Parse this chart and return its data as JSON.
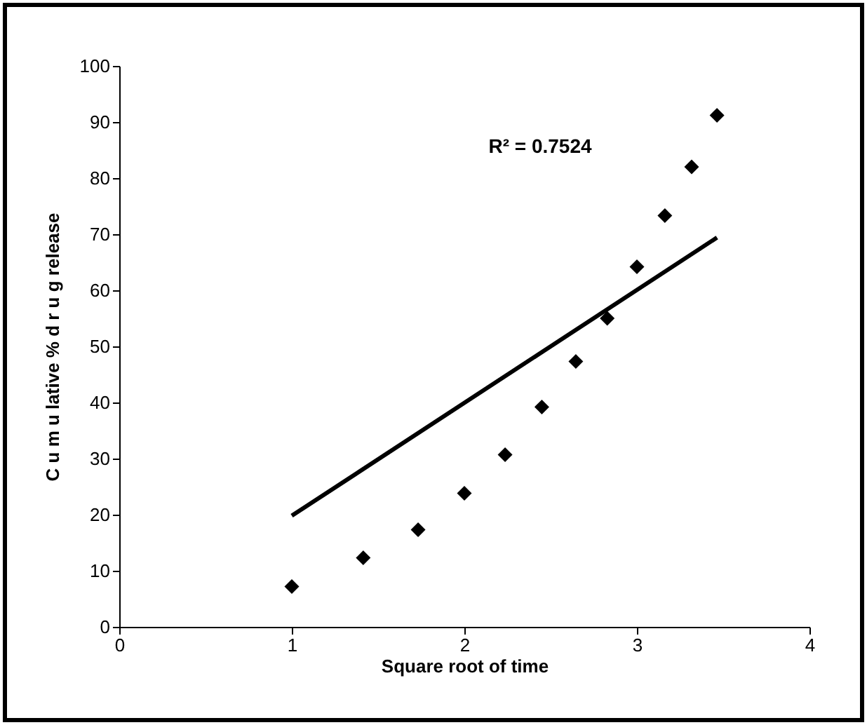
{
  "chart_data": {
    "type": "scatter",
    "xlabel": "Square root of time",
    "ylabel": "C u m u lative  %  d r u g  release",
    "x": [
      1,
      1.414,
      1.732,
      2,
      2.236,
      2.449,
      2.646,
      2.828,
      3,
      3.162,
      3.317,
      3.464
    ],
    "series": [
      {
        "color": "#000000",
        "marker": "diamond",
        "values": [
          7.2,
          12.3,
          17.3,
          23.8,
          30.7,
          39.2,
          47.3,
          55,
          64.2,
          73.3,
          82,
          91.2
        ]
      },
      {
        "type": "line",
        "color": "#000000",
        "x": [
          1,
          3.464
        ],
        "values": [
          19.8,
          69.4
        ],
        "line_style": "solid"
      }
    ],
    "xlim": [
      0,
      4
    ],
    "xticks": [
      0,
      1,
      2,
      3,
      4
    ],
    "ylim": [
      0,
      100
    ],
    "yticks": [
      0,
      10,
      20,
      30,
      40,
      50,
      60,
      70,
      80,
      90,
      100
    ],
    "grid": false,
    "annotations": [
      "R² = 0.7524"
    ]
  }
}
